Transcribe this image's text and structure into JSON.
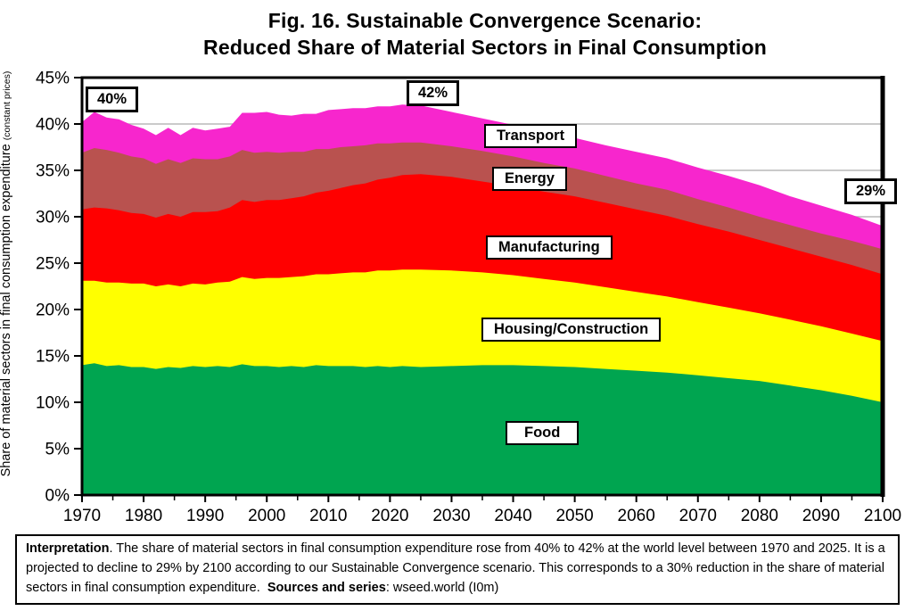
{
  "chart_data": {
    "type": "area",
    "stacked": true,
    "title": "Fig. 16. Sustainable Convergence Scenario: Reduced Share of Material Sectors in Final Consumption",
    "title_lines": [
      "Fig. 16. Sustainable Convergence Scenario:",
      "Reduced Share of Material Sectors in Final Consumption"
    ],
    "ylabel_main": "Share of material sectors in final consumption expenditure ",
    "ylabel_small": "(constant prices)",
    "xlabel": "",
    "xlim": [
      1970,
      2100
    ],
    "ylim": [
      0,
      45
    ],
    "grid": "horizontal",
    "x_ticks": [
      1970,
      1980,
      1990,
      2000,
      2010,
      2020,
      2030,
      2040,
      2050,
      2060,
      2070,
      2080,
      2090,
      2100
    ],
    "y_tick_values": [
      0,
      5,
      10,
      15,
      20,
      25,
      30,
      35,
      40,
      45
    ],
    "y_tick_labels": [
      "0%",
      "5%",
      "10%",
      "15%",
      "20%",
      "25%",
      "30%",
      "35%",
      "40%",
      "45%"
    ],
    "x": [
      1970,
      1972,
      1974,
      1976,
      1978,
      1980,
      1982,
      1984,
      1986,
      1988,
      1990,
      1992,
      1994,
      1996,
      1998,
      2000,
      2002,
      2004,
      2006,
      2008,
      2010,
      2012,
      2014,
      2016,
      2018,
      2020,
      2022,
      2025,
      2030,
      2035,
      2040,
      2045,
      2050,
      2055,
      2060,
      2065,
      2070,
      2075,
      2080,
      2085,
      2090,
      2095,
      2100
    ],
    "series": [
      {
        "name": "Food",
        "color": "#00A550",
        "values": [
          14.0,
          14.2,
          13.9,
          14.0,
          13.8,
          13.8,
          13.6,
          13.8,
          13.7,
          13.9,
          13.8,
          13.9,
          13.8,
          14.1,
          13.9,
          13.9,
          13.8,
          13.9,
          13.8,
          14.0,
          13.9,
          13.9,
          13.9,
          13.8,
          13.9,
          13.8,
          13.9,
          13.8,
          13.9,
          14.0,
          14.0,
          13.9,
          13.8,
          13.6,
          13.4,
          13.2,
          12.9,
          12.6,
          12.3,
          11.8,
          11.3,
          10.7,
          10.0
        ]
      },
      {
        "name": "Housing/Construction",
        "color": "#FFFF00",
        "values": [
          9.1,
          8.9,
          9.0,
          8.9,
          9.0,
          9.0,
          8.9,
          8.9,
          8.8,
          8.9,
          8.9,
          9.0,
          9.2,
          9.4,
          9.4,
          9.5,
          9.6,
          9.6,
          9.8,
          9.8,
          9.9,
          10.0,
          10.1,
          10.2,
          10.3,
          10.4,
          10.4,
          10.5,
          10.3,
          10.0,
          9.7,
          9.4,
          9.1,
          8.8,
          8.5,
          8.2,
          7.9,
          7.6,
          7.3,
          7.1,
          6.9,
          6.7,
          6.6
        ]
      },
      {
        "name": "Manufacturing",
        "color": "#FF0000",
        "values": [
          7.7,
          7.9,
          8.0,
          7.8,
          7.6,
          7.5,
          7.4,
          7.6,
          7.5,
          7.7,
          7.8,
          7.7,
          8.0,
          8.3,
          8.3,
          8.4,
          8.4,
          8.5,
          8.6,
          8.8,
          9.0,
          9.2,
          9.4,
          9.6,
          9.8,
          10.0,
          10.2,
          10.3,
          10.1,
          9.8,
          9.6,
          9.4,
          9.3,
          9.1,
          8.9,
          8.7,
          8.4,
          8.2,
          7.9,
          7.7,
          7.5,
          7.4,
          7.2
        ]
      },
      {
        "name": "Energy",
        "color": "#B9524F",
        "values": [
          6.1,
          6.4,
          6.3,
          6.2,
          6.1,
          6.0,
          5.8,
          5.9,
          5.8,
          5.8,
          5.7,
          5.6,
          5.5,
          5.4,
          5.3,
          5.2,
          5.1,
          5.0,
          4.8,
          4.7,
          4.5,
          4.4,
          4.2,
          4.1,
          3.9,
          3.7,
          3.5,
          3.4,
          3.3,
          3.3,
          3.2,
          3.1,
          3.0,
          2.9,
          2.8,
          2.8,
          2.7,
          2.6,
          2.5,
          2.5,
          2.5,
          2.6,
          2.7
        ]
      },
      {
        "name": "Transport",
        "color": "#F726CD",
        "values": [
          3.3,
          3.9,
          3.5,
          3.6,
          3.4,
          3.2,
          3.1,
          3.4,
          3.0,
          3.3,
          3.1,
          3.3,
          3.2,
          4.0,
          4.3,
          4.3,
          4.1,
          3.9,
          4.1,
          3.8,
          4.2,
          4.1,
          4.1,
          4.0,
          4.0,
          4.0,
          4.1,
          4.0,
          3.7,
          3.5,
          3.4,
          3.3,
          3.3,
          3.3,
          3.4,
          3.4,
          3.4,
          3.4,
          3.4,
          3.1,
          3.0,
          2.8,
          2.5
        ]
      }
    ],
    "annotations": {
      "start_total": "40%",
      "peak_total": "42%",
      "end_total": "29%"
    },
    "colors": {
      "grid": "#b8b8b8",
      "axis": "#000000",
      "plot_background": "#ffffff"
    }
  },
  "interpretation": {
    "label": "Interpretation",
    "text": ". The share of material sectors in final consumption expenditure rose from 40% to 42% at the world level between 1970 and 2025. It is a projected to decline to 29% by 2100 according to our Sustainable Convergence scenario. This corresponds to a 30% reduction in the share of material sectors in final consumption expenditure.  ",
    "sources_label": "Sources and series",
    "sources_text": ": wseed.world (I0m)"
  }
}
